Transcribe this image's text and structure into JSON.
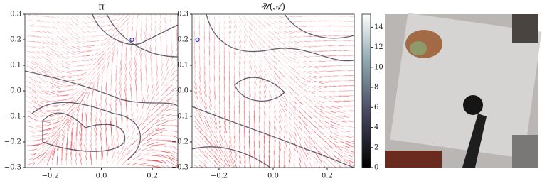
{
  "chart_data": [
    {
      "type": "quiver",
      "title": "π",
      "xlim": [
        -0.3,
        0.3
      ],
      "ylim": [
        -0.3,
        0.3
      ],
      "xticks": [
        {
          "value": -0.2,
          "label": "−0.2"
        },
        {
          "value": 0.0,
          "label": "0.0"
        },
        0.2
      ],
      "yticks": [
        {
          "value": -0.3,
          "label": "−0.3"
        },
        {
          "value": -0.2,
          "label": "−0.2"
        },
        {
          "value": -0.1,
          "label": "−0.1"
        },
        {
          "value": 0.0,
          "label": "0.0"
        },
        0.1,
        0.2,
        0.3
      ],
      "marker": {
        "x": 0.12,
        "y": 0.2,
        "color": "#3a3acc"
      },
      "color": "#e8303a"
    },
    {
      "type": "quiver",
      "title": "𝒰(𝒜)",
      "xlim": [
        -0.3,
        0.3
      ],
      "ylim": [
        -0.3,
        0.3
      ],
      "xticks": [
        {
          "value": -0.2,
          "label": "−0.2"
        },
        {
          "value": 0.0,
          "label": "0.0"
        },
        0.2
      ],
      "yticks": [
        {
          "value": -0.3,
          "label": "−0.3"
        },
        {
          "value": -0.2,
          "label": "−0.2"
        },
        {
          "value": -0.1,
          "label": "−0.1"
        },
        {
          "value": 0.0,
          "label": "0.0"
        },
        0.1,
        0.2,
        0.3
      ],
      "marker": {
        "x": -0.28,
        "y": 0.2,
        "color": "#3a3acc"
      },
      "color": "#e8303a"
    },
    {
      "type": "colorbar",
      "ylim": [
        0,
        15.3
      ],
      "yticks": [
        0,
        2,
        4,
        6,
        8,
        10,
        12,
        14
      ]
    }
  ]
}
